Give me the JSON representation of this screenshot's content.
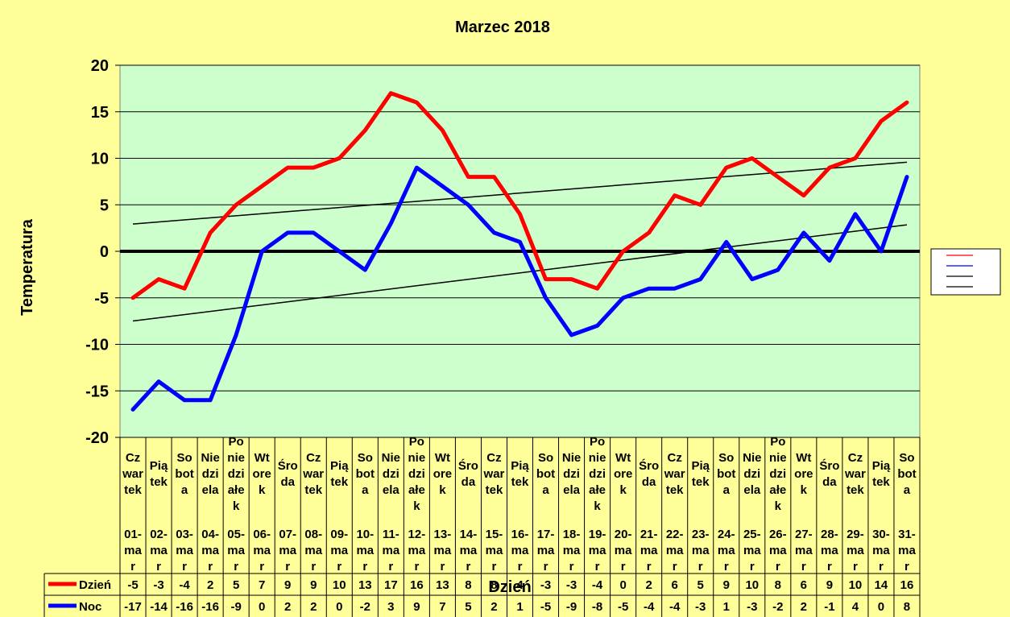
{
  "chart_data": {
    "type": "line",
    "title": "Marzec 2018",
    "xlabel": "Dzień",
    "ylabel": "Temperatura",
    "ylim": [
      -20,
      20
    ],
    "yticks": [
      20,
      15,
      10,
      5,
      0,
      -5,
      -10,
      -15,
      -20
    ],
    "grid": true,
    "legend": "right",
    "categories": [
      {
        "weekday": [
          "Cz",
          "war",
          "tek"
        ],
        "date": [
          "01-",
          "ma",
          "r"
        ]
      },
      {
        "weekday": [
          "Pią",
          "tek"
        ],
        "date": [
          "02-",
          "ma",
          "r"
        ]
      },
      {
        "weekday": [
          "So",
          "bot",
          "a"
        ],
        "date": [
          "03-",
          "ma",
          "r"
        ]
      },
      {
        "weekday": [
          "Nie",
          "dzi",
          "ela"
        ],
        "date": [
          "04-",
          "ma",
          "r"
        ]
      },
      {
        "weekday": [
          "Po",
          "nie",
          "dzi",
          "ałe",
          "k"
        ],
        "date": [
          "05-",
          "ma",
          "r"
        ]
      },
      {
        "weekday": [
          "Wt",
          "ore",
          "k"
        ],
        "date": [
          "06-",
          "ma",
          "r"
        ]
      },
      {
        "weekday": [
          "Śro",
          "da"
        ],
        "date": [
          "07-",
          "ma",
          "r"
        ]
      },
      {
        "weekday": [
          "Cz",
          "war",
          "tek"
        ],
        "date": [
          "08-",
          "ma",
          "r"
        ]
      },
      {
        "weekday": [
          "Pią",
          "tek"
        ],
        "date": [
          "09-",
          "ma",
          "r"
        ]
      },
      {
        "weekday": [
          "So",
          "bot",
          "a"
        ],
        "date": [
          "10-",
          "ma",
          "r"
        ]
      },
      {
        "weekday": [
          "Nie",
          "dzi",
          "ela"
        ],
        "date": [
          "11-",
          "ma",
          "r"
        ]
      },
      {
        "weekday": [
          "Po",
          "nie",
          "dzi",
          "ałe",
          "k"
        ],
        "date": [
          "12-",
          "ma",
          "r"
        ]
      },
      {
        "weekday": [
          "Wt",
          "ore",
          "k"
        ],
        "date": [
          "13-",
          "ma",
          "r"
        ]
      },
      {
        "weekday": [
          "Śro",
          "da"
        ],
        "date": [
          "14-",
          "ma",
          "r"
        ]
      },
      {
        "weekday": [
          "Cz",
          "war",
          "tek"
        ],
        "date": [
          "15-",
          "ma",
          "r"
        ]
      },
      {
        "weekday": [
          "Pią",
          "tek"
        ],
        "date": [
          "16-",
          "ma",
          "r"
        ]
      },
      {
        "weekday": [
          "So",
          "bot",
          "a"
        ],
        "date": [
          "17-",
          "ma",
          "r"
        ]
      },
      {
        "weekday": [
          "Nie",
          "dzi",
          "ela"
        ],
        "date": [
          "18-",
          "ma",
          "r"
        ]
      },
      {
        "weekday": [
          "Po",
          "nie",
          "dzi",
          "ałe",
          "k"
        ],
        "date": [
          "19-",
          "ma",
          "r"
        ]
      },
      {
        "weekday": [
          "Wt",
          "ore",
          "k"
        ],
        "date": [
          "20-",
          "ma",
          "r"
        ]
      },
      {
        "weekday": [
          "Śro",
          "da"
        ],
        "date": [
          "21-",
          "ma",
          "r"
        ]
      },
      {
        "weekday": [
          "Cz",
          "war",
          "tek"
        ],
        "date": [
          "22-",
          "ma",
          "r"
        ]
      },
      {
        "weekday": [
          "Pią",
          "tek"
        ],
        "date": [
          "23-",
          "ma",
          "r"
        ]
      },
      {
        "weekday": [
          "So",
          "bot",
          "a"
        ],
        "date": [
          "24-",
          "ma",
          "r"
        ]
      },
      {
        "weekday": [
          "Nie",
          "dzi",
          "ela"
        ],
        "date": [
          "25-",
          "ma",
          "r"
        ]
      },
      {
        "weekday": [
          "Po",
          "nie",
          "dzi",
          "ałe",
          "k"
        ],
        "date": [
          "26-",
          "ma",
          "r"
        ]
      },
      {
        "weekday": [
          "Wt",
          "ore",
          "k"
        ],
        "date": [
          "27-",
          "ma",
          "r"
        ]
      },
      {
        "weekday": [
          "Śro",
          "da"
        ],
        "date": [
          "28-",
          "ma",
          "r"
        ]
      },
      {
        "weekday": [
          "Cz",
          "war",
          "tek"
        ],
        "date": [
          "29-",
          "ma",
          "r"
        ]
      },
      {
        "weekday": [
          "Pią",
          "tek"
        ],
        "date": [
          "30-",
          "ma",
          "r"
        ]
      },
      {
        "weekday": [
          "So",
          "bot",
          "a"
        ],
        "date": [
          "31-",
          "ma",
          "r"
        ]
      }
    ],
    "series": [
      {
        "name": "Dzień",
        "color": "#ff0000",
        "values": [
          -5,
          -3,
          -4,
          2,
          5,
          7,
          9,
          9,
          10,
          13,
          17,
          16,
          13,
          8,
          8,
          4,
          -3,
          -3,
          -4,
          0,
          2,
          6,
          5,
          9,
          10,
          8,
          6,
          9,
          10,
          14,
          16
        ]
      },
      {
        "name": "Noc",
        "color": "#0000ff",
        "values": [
          -17,
          -14,
          -16,
          -16,
          -9,
          0,
          2,
          2,
          0,
          -2,
          3,
          9,
          7,
          5,
          2,
          1,
          -5,
          -9,
          -8,
          -5,
          -4,
          -4,
          -3,
          1,
          -3,
          -2,
          2,
          -1,
          4,
          0,
          8
        ]
      }
    ],
    "colors": {
      "plot_bg": "#ccffcc",
      "page_bg": "#ffff99",
      "gridline": "#000000"
    }
  }
}
